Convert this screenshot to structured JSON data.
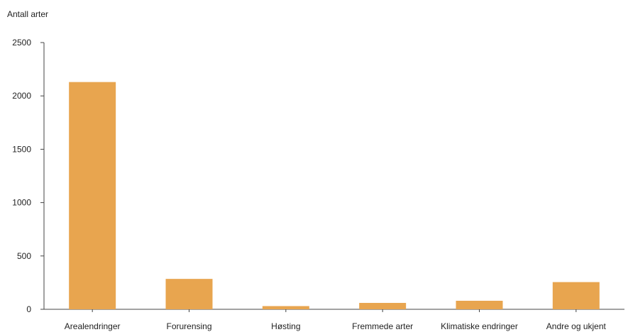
{
  "chart_data": {
    "type": "bar",
    "ylabel": "Antall arter",
    "categories": [
      "Arealendringer",
      "Forurensing",
      "Høsting",
      "Fremmede arter",
      "Klimatiske endringer",
      "Andre og ukjent"
    ],
    "values": [
      2130,
      285,
      30,
      60,
      80,
      255
    ],
    "ylim": [
      0,
      2500
    ],
    "yticks": [
      0,
      500,
      1000,
      1500,
      2000,
      2500
    ],
    "grid": false,
    "legend": "none",
    "bar_color": "#E8A54F",
    "axis_color": "#444444"
  }
}
